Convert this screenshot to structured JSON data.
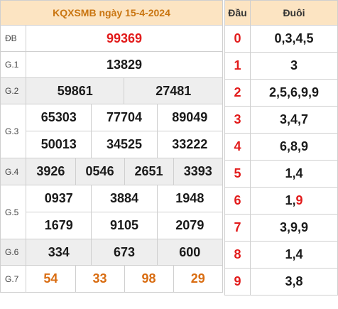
{
  "title": "KQXSMB ngày 15-4-2024",
  "results": {
    "db": {
      "label": "ĐB",
      "values": [
        "99369"
      ]
    },
    "g1": {
      "label": "G.1",
      "values": [
        "13829"
      ]
    },
    "g2": {
      "label": "G.2",
      "values": [
        "59861",
        "27481"
      ]
    },
    "g3": {
      "label": "G.3",
      "values": [
        "65303",
        "77704",
        "89049",
        "50013",
        "34525",
        "33222"
      ]
    },
    "g4": {
      "label": "G.4",
      "values": [
        "3926",
        "0546",
        "2651",
        "3393"
      ]
    },
    "g5": {
      "label": "G.5",
      "values": [
        "0937",
        "3884",
        "1948",
        "1679",
        "9105",
        "2079"
      ]
    },
    "g6": {
      "label": "G.6",
      "values": [
        "334",
        "673",
        "600"
      ]
    },
    "g7": {
      "label": "G.7",
      "values": [
        "54",
        "33",
        "98",
        "29"
      ]
    }
  },
  "loto": {
    "header_dau": "Đầu",
    "header_duoi": "Đuôi",
    "rows": [
      {
        "dau": "0",
        "duoi": "0,3,4,5"
      },
      {
        "dau": "1",
        "duoi": "3"
      },
      {
        "dau": "2",
        "duoi": "2,5,6,9,9"
      },
      {
        "dau": "3",
        "duoi": "3,4,7"
      },
      {
        "dau": "4",
        "duoi": "6,8,9"
      },
      {
        "dau": "5",
        "duoi": "1,4"
      },
      {
        "dau": "6",
        "duoi_prefix": "1,",
        "duoi_red": "9"
      },
      {
        "dau": "7",
        "duoi": "3,9,9"
      },
      {
        "dau": "8",
        "duoi": "1,4"
      },
      {
        "dau": "9",
        "duoi": "3,8"
      }
    ]
  },
  "colors": {
    "header_bg": "#fce4c2",
    "header_text": "#c97510",
    "accent_red": "#e21b1b",
    "g7_orange": "#d96d12",
    "row_gray": "#eeeeee"
  }
}
